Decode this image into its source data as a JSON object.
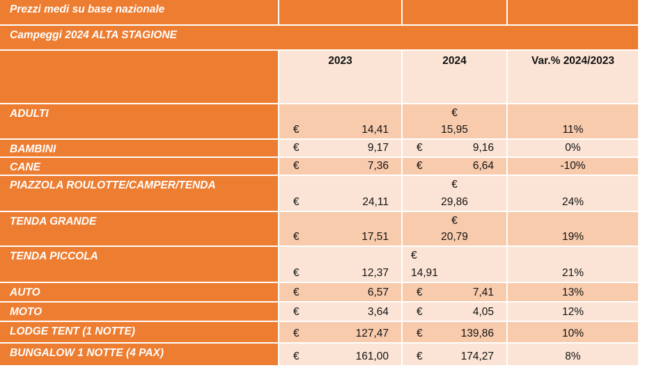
{
  "title": "Prezzi medi su base nazionale",
  "subtitle": "Campeggi 2024 ALTA STAGIONE",
  "headers": [
    "2023",
    "2024",
    "Var.% 2024/2023"
  ],
  "currency": "€",
  "rows": [
    {
      "label": "ADULTI",
      "v2023": "14,41",
      "v2024": "15,95",
      "var": "11%"
    },
    {
      "label": "BAMBINI",
      "v2023": "9,17",
      "v2024": "9,16",
      "var": "0%"
    },
    {
      "label": "CANE",
      "v2023": "7,36",
      "v2024": "6,64",
      "var": "-10%"
    },
    {
      "label": "PIAZZOLA ROULOTTE/CAMPER/TENDA",
      "v2023": "24,11",
      "v2024": "29,86",
      "var": "24%"
    },
    {
      "label": "TENDA GRANDE",
      "v2023": "17,51",
      "v2024": "20,79",
      "var": "19%"
    },
    {
      "label": "TENDA PICCOLA",
      "v2023": "12,37",
      "v2024": "14,91",
      "var": "21%"
    },
    {
      "label": "AUTO",
      "v2023": "6,57",
      "v2024": "7,41",
      "var": "13%"
    },
    {
      "label": "MOTO",
      "v2023": "3,64",
      "v2024": "4,05",
      "var": "12%"
    },
    {
      "label": "LODGE TENT (1 NOTTE)",
      "v2023": "127,47",
      "v2024": "139,86",
      "var": "10%"
    },
    {
      "label": "BUNGALOW 1 NOTTE (4 PAX)",
      "v2023": "161,00",
      "v2024": "174,27",
      "var": "8%"
    }
  ]
}
